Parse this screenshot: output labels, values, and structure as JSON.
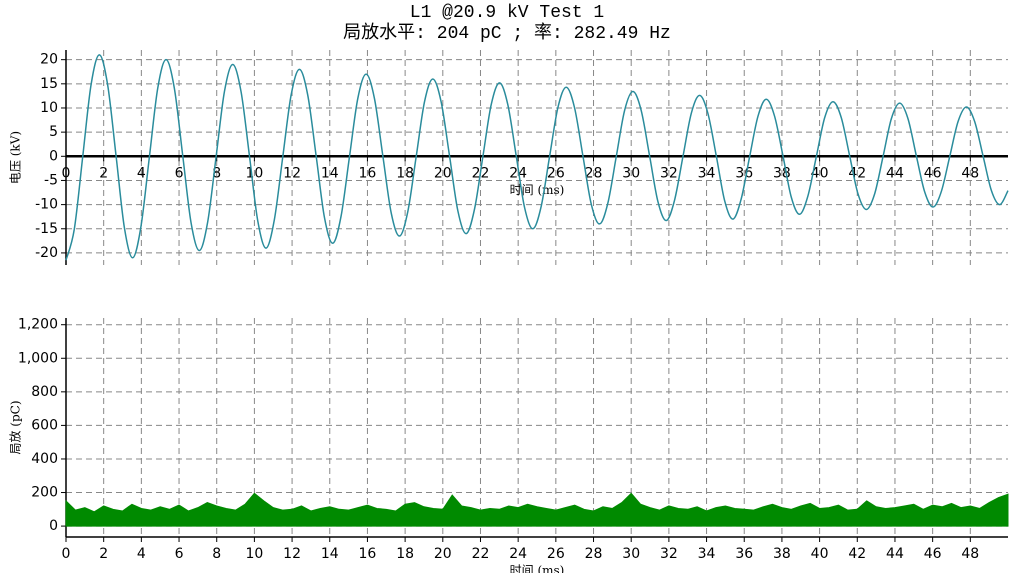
{
  "chart_data": [
    {
      "type": "line",
      "title": "L1 @20.9 kV Test 1",
      "subtitle": "局放水平: 204 pC ; 率: 282.49 Hz",
      "ylabel": "电压 (kV)",
      "xlabel": "时间 (ms)",
      "xaxis_position": "zero",
      "grid": true,
      "xlim": [
        0,
        50
      ],
      "xticks": [
        0,
        2,
        4,
        6,
        8,
        10,
        12,
        14,
        16,
        18,
        20,
        22,
        24,
        26,
        28,
        30,
        32,
        34,
        36,
        38,
        40,
        42,
        44,
        46,
        48
      ],
      "ylim": [
        -22.5,
        22
      ],
      "yticks": [
        20,
        15,
        10,
        5,
        0,
        -5,
        -10,
        -15,
        -20
      ],
      "x": [
        0,
        0.44,
        0.89,
        1.33,
        1.77,
        2.21,
        2.66,
        3.1,
        3.54,
        3.98,
        4.43,
        4.87,
        5.31,
        5.75,
        6.2,
        6.64,
        7.08,
        7.52,
        7.97,
        8.41,
        8.85,
        9.29,
        9.74,
        10.18,
        10.62,
        11.06,
        11.51,
        11.95,
        12.39,
        12.83,
        13.28,
        13.72,
        14.16,
        14.6,
        15.05,
        15.49,
        15.93,
        16.37,
        16.82,
        17.26,
        17.7,
        18.14,
        18.59,
        19.03,
        19.47,
        19.91,
        20.36,
        20.8,
        21.24,
        21.68,
        22.13,
        22.57,
        23.01,
        23.45,
        23.9,
        24.34,
        24.78,
        25.22,
        25.67,
        26.11,
        26.55,
        26.99,
        27.44,
        27.88,
        28.32,
        28.76,
        29.21,
        29.65,
        30.09,
        30.53,
        30.98,
        31.42,
        31.86,
        32.3,
        32.75,
        33.19,
        33.63,
        34.07,
        34.52,
        34.96,
        35.4,
        35.84,
        36.29,
        36.73,
        37.17,
        37.61,
        38.06,
        38.5,
        38.94,
        39.38,
        39.83,
        40.27,
        40.71,
        41.15,
        41.6,
        42.04,
        42.48,
        42.92,
        43.37,
        43.81,
        44.25,
        44.69,
        45.14,
        45.58,
        46.02,
        46.46,
        46.91,
        47.35,
        47.79,
        48.23,
        48.68,
        49.12,
        49.56,
        50
      ],
      "series": [
        {
          "color": "#2a8c9c",
          "values": [
            -21.5,
            -15.1,
            0,
            14.8,
            21,
            14.8,
            0,
            -14.8,
            -21,
            -14.5,
            0,
            14.1,
            20,
            14.1,
            0,
            -13.8,
            -19.5,
            -13.6,
            0,
            13.4,
            19,
            13.4,
            0,
            -13.4,
            -19,
            -13.1,
            0,
            12.7,
            18,
            12.7,
            0,
            -12.7,
            -18,
            -12.4,
            0,
            12,
            17,
            12,
            0,
            -11.7,
            -16.5,
            -11.5,
            0,
            11.3,
            16,
            11.3,
            0,
            -11.3,
            -16,
            -11,
            0,
            10.7,
            15.2,
            10.7,
            0,
            -10.6,
            -15,
            -10.4,
            0,
            10.1,
            14.3,
            10.1,
            0,
            -9.9,
            -14,
            -9.7,
            0,
            9.5,
            13.4,
            9.5,
            0,
            -9.4,
            -13.3,
            -9.1,
            0,
            8.9,
            12.6,
            8.9,
            0,
            -9.2,
            -13,
            -8.8,
            0,
            8.3,
            11.8,
            8.3,
            0,
            -8.5,
            -12,
            -8.2,
            0,
            8,
            11.3,
            8,
            0,
            -7.8,
            -11,
            -7.8,
            0,
            7.8,
            11,
            7.8,
            0,
            -7.4,
            -10.5,
            -7.3,
            0,
            7.2,
            10.2,
            7.2,
            0,
            -7.1,
            -10,
            -7.1
          ]
        }
      ]
    },
    {
      "type": "area",
      "ylabel": "局放 (pC)",
      "xlabel": "时间 (ms)",
      "xaxis_position": "bottom",
      "grid": true,
      "xlim": [
        0,
        50
      ],
      "xticks": [
        0,
        2,
        4,
        6,
        8,
        10,
        12,
        14,
        16,
        18,
        20,
        22,
        24,
        26,
        28,
        30,
        32,
        34,
        36,
        38,
        40,
        42,
        44,
        46,
        48
      ],
      "ylim": [
        -65,
        1240
      ],
      "yticks": [
        {
          "value": 1200,
          "label": "1,200"
        },
        {
          "value": 1000,
          "label": "1,000"
        },
        800,
        600,
        400,
        200,
        0
      ],
      "x": [
        0,
        0.5,
        1,
        1.5,
        2,
        2.5,
        3,
        3.5,
        4,
        4.5,
        5,
        5.5,
        6,
        6.5,
        7,
        7.5,
        8,
        8.5,
        9,
        9.5,
        10,
        10.5,
        11,
        11.5,
        12,
        12.5,
        13,
        13.5,
        14,
        14.5,
        15,
        15.5,
        16,
        16.5,
        17,
        17.5,
        18,
        18.5,
        19,
        19.5,
        20,
        20.5,
        21,
        21.5,
        22,
        22.5,
        23,
        23.5,
        24,
        24.5,
        25,
        25.5,
        26,
        26.5,
        27,
        27.5,
        28,
        28.5,
        29,
        29.5,
        30,
        30.5,
        31,
        31.5,
        32,
        32.5,
        33,
        33.5,
        34,
        34.5,
        35,
        35.5,
        36,
        36.5,
        37,
        37.5,
        38,
        38.5,
        39,
        39.5,
        40,
        40.5,
        41,
        41.5,
        42,
        42.5,
        43,
        43.5,
        44,
        44.5,
        45,
        45.5,
        46,
        46.5,
        47,
        47.5,
        48,
        48.5,
        49,
        49.5,
        50
      ],
      "series": [
        {
          "color": "#008a00",
          "values": [
            150,
            95,
            110,
            85,
            120,
            100,
            90,
            130,
            105,
            95,
            115,
            100,
            125,
            90,
            110,
            140,
            120,
            105,
            95,
            130,
            195,
            150,
            110,
            95,
            100,
            120,
            90,
            105,
            115,
            100,
            95,
            110,
            125,
            105,
            100,
            90,
            130,
            140,
            115,
            105,
            100,
            185,
            120,
            110,
            95,
            105,
            100,
            120,
            110,
            130,
            115,
            105,
            95,
            110,
            125,
            100,
            90,
            115,
            105,
            140,
            195,
            130,
            110,
            95,
            120,
            105,
            100,
            115,
            90,
            110,
            120,
            105,
            100,
            95,
            115,
            130,
            110,
            100,
            120,
            135,
            105,
            110,
            125,
            95,
            100,
            150,
            115,
            105,
            110,
            120,
            130,
            100,
            125,
            115,
            135,
            110,
            120,
            105,
            140,
            170,
            190
          ]
        }
      ]
    }
  ]
}
